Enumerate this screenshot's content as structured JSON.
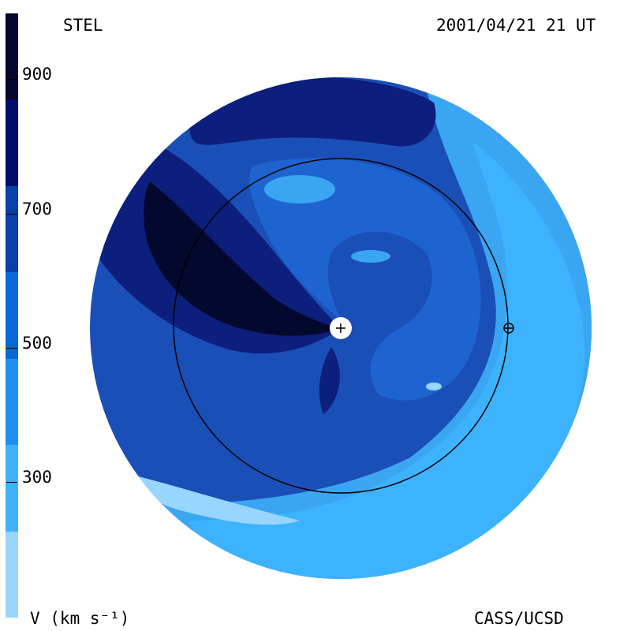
{
  "header": {
    "instrument": "STEL",
    "timestamp": "2001/04/21 21 UT"
  },
  "footer": {
    "unit_label": "V (km s⁻¹)",
    "credit": "CASS/UCSD"
  },
  "colorbar": {
    "ticks": [
      "900",
      "700",
      "500",
      "300"
    ],
    "colors": [
      "#04082e",
      "#020b6e",
      "#0a3ea8",
      "#0866d8",
      "#1e8ff5",
      "#40b0ff",
      "#99d6ff"
    ]
  },
  "map": {
    "colors": {
      "darkest": "#04082e",
      "dark": "#0c1f7c",
      "medium_dark": "#1a3fa6",
      "medium": "#1d64d1",
      "light": "#3aa6f2",
      "lighter": "#3db3ff",
      "lightest": "#99d6ff",
      "outer_ring": "#1b4fb8"
    },
    "sun_symbol": "+",
    "earth_symbol": "⊕"
  }
}
